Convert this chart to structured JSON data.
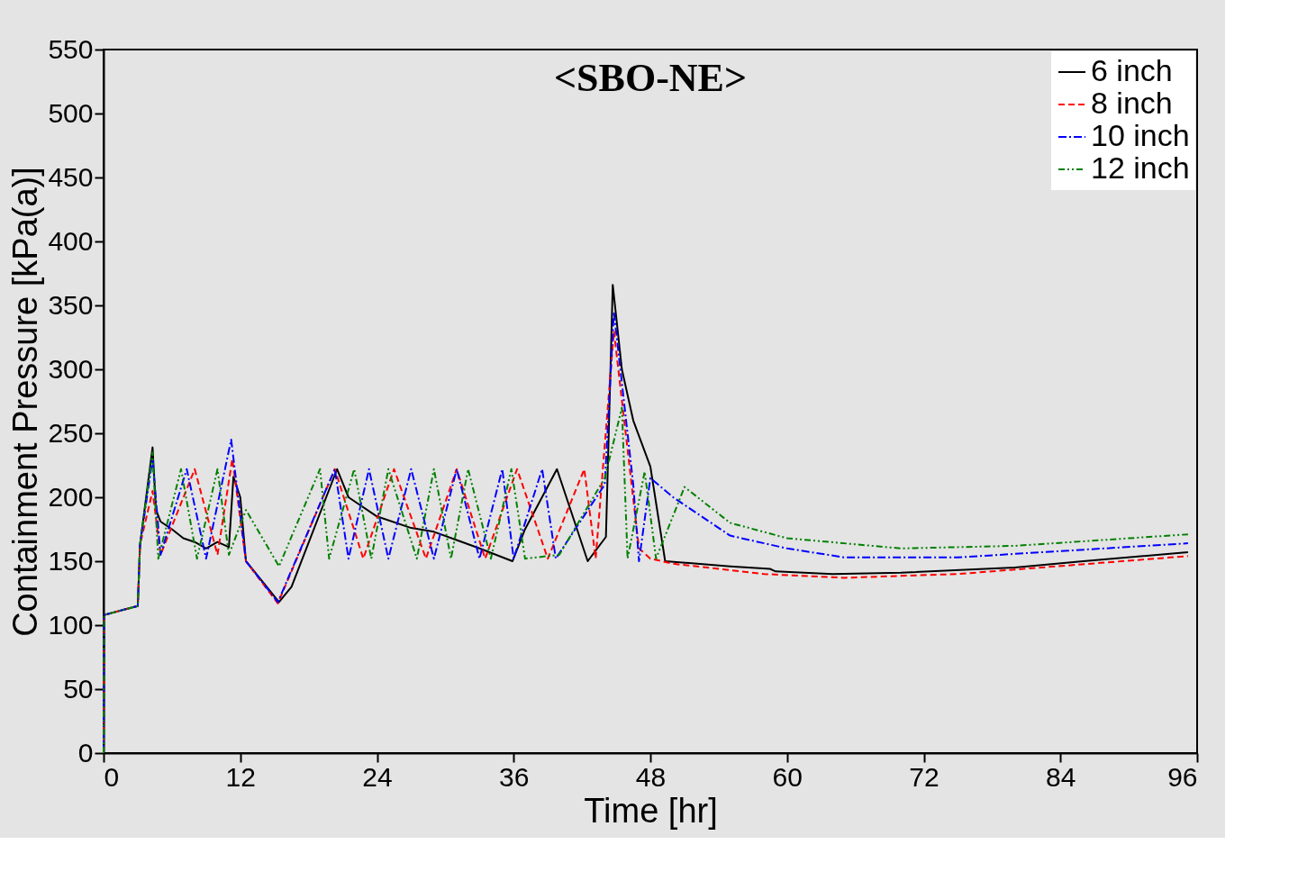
{
  "chart_data": {
    "type": "line",
    "title": "<SBO-NE>",
    "xlabel": "Time [hr]",
    "ylabel": "Containment Pressure [kPa(a)]",
    "xlim": [
      0,
      96
    ],
    "xticks": [
      0,
      12,
      24,
      36,
      48,
      60,
      72,
      84,
      96
    ],
    "ylim": [
      0,
      550
    ],
    "yticks": [
      0,
      50,
      100,
      150,
      200,
      250,
      300,
      350,
      400,
      450,
      500,
      550
    ],
    "grid": false,
    "legend": "top right",
    "marker": "none",
    "series": [
      {
        "name": "6 inch",
        "color": "#000000",
        "line_style": "solid",
        "x": [
          0,
          0.05,
          3,
          3.2,
          4.3,
          4.6,
          5,
          6,
          7,
          8,
          9,
          10,
          11,
          11.4,
          12,
          12.5,
          15.4,
          16.5,
          20.5,
          21.5,
          24,
          27,
          29,
          33,
          35.9,
          37,
          39.8,
          42.5,
          44.1,
          44.7,
          45.5,
          46.5,
          48,
          49.3,
          55,
          58.5,
          59,
          64,
          70,
          80,
          86,
          95.2
        ],
        "values": [
          0,
          108,
          115,
          163,
          239,
          190,
          181,
          175,
          168,
          165,
          160,
          165,
          161,
          216,
          200,
          150,
          118,
          130,
          222,
          200,
          185,
          176,
          173,
          160,
          150,
          175,
          222,
          150,
          169,
          366,
          300,
          260,
          224,
          150,
          146,
          144,
          142,
          140,
          141,
          145,
          150,
          157
        ]
      },
      {
        "name": "8 inch",
        "color": "#ff0000",
        "line_style": "dashed",
        "x": [
          0,
          0.05,
          3,
          3.2,
          4.3,
          5,
          8,
          10,
          11.3,
          12.5,
          15.3,
          20.3,
          22.8,
          25.5,
          28.3,
          31,
          33.5,
          36.3,
          39,
          42.2,
          43.2,
          44.8,
          47,
          48,
          50,
          58,
          65,
          75,
          95.2
        ],
        "values": [
          0,
          108,
          115,
          163,
          205,
          155,
          222,
          155,
          230,
          150,
          117,
          222,
          152,
          222,
          152,
          222,
          152,
          222,
          152,
          222,
          152,
          330,
          160,
          152,
          148,
          140,
          137,
          140,
          154
        ]
      },
      {
        "name": "10 inch",
        "color": "#0000ff",
        "line_style": "dashdot",
        "x": [
          0,
          0.05,
          3,
          3.2,
          4.3,
          5,
          7.3,
          9,
          11.2,
          12.5,
          15.3,
          20.3,
          21.5,
          23.3,
          25,
          27,
          29,
          31,
          33,
          35,
          36,
          38.5,
          39.7,
          44,
          44.8,
          46.5,
          47,
          48,
          50,
          55,
          60,
          65,
          75,
          95.2
        ],
        "values": [
          0,
          108,
          115,
          163,
          230,
          155,
          222,
          152,
          245,
          150,
          118,
          222,
          152,
          222,
          152,
          222,
          152,
          222,
          152,
          222,
          152,
          222,
          152,
          210,
          345,
          210,
          150,
          215,
          200,
          170,
          160,
          153,
          153,
          164
        ]
      },
      {
        "name": "12 inch",
        "color": "#008000",
        "line_style": "dashdotdot",
        "x": [
          0,
          0.05,
          3,
          3.2,
          4.3,
          4.8,
          6.8,
          8.2,
          10,
          11,
          12.5,
          15.4,
          19,
          19.8,
          22,
          23.5,
          25,
          27.5,
          29,
          30.5,
          32,
          34,
          35.8,
          37,
          40,
          44,
          45.5,
          46,
          47.5,
          48.5,
          51,
          55,
          60,
          70,
          80,
          95.2
        ],
        "values": [
          0,
          108,
          115,
          163,
          235,
          152,
          222,
          152,
          222,
          155,
          190,
          146,
          222,
          152,
          222,
          152,
          222,
          152,
          222,
          152,
          222,
          152,
          222,
          152,
          155,
          215,
          270,
          152,
          220,
          152,
          208,
          180,
          168,
          160,
          162,
          171
        ]
      }
    ]
  }
}
